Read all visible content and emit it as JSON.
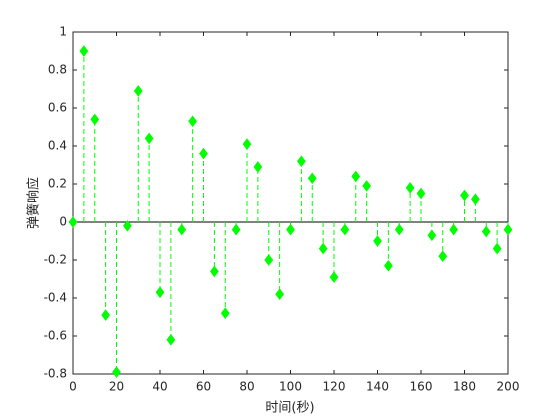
{
  "chart_data": {
    "type": "stem",
    "xlabel": "时间(秒)",
    "ylabel": "弹簧响应",
    "x": [
      0,
      5,
      10,
      15,
      20,
      25,
      30,
      35,
      40,
      45,
      50,
      55,
      60,
      65,
      70,
      75,
      80,
      85,
      90,
      95,
      100,
      105,
      110,
      115,
      120,
      125,
      130,
      135,
      140,
      145,
      150,
      155,
      160,
      165,
      170,
      175,
      180,
      185,
      190,
      195,
      200
    ],
    "values": [
      0,
      0.9,
      0.54,
      -0.49,
      -0.79,
      -0.02,
      0.69,
      0.44,
      -0.37,
      -0.62,
      -0.04,
      0.53,
      0.36,
      -0.26,
      -0.48,
      -0.04,
      0.41,
      0.29,
      -0.2,
      -0.38,
      -0.04,
      0.32,
      0.23,
      -0.14,
      -0.29,
      -0.04,
      0.24,
      0.19,
      -0.1,
      -0.23,
      -0.04,
      0.18,
      0.15,
      -0.07,
      -0.18,
      -0.04,
      0.14,
      0.12,
      -0.05,
      -0.14,
      -0.04
    ],
    "color": "#00ff00",
    "xlim": [
      0,
      200
    ],
    "xticks": [
      0,
      20,
      40,
      60,
      80,
      100,
      120,
      140,
      160,
      180,
      200
    ],
    "ylim": [
      -0.8,
      1
    ],
    "yticks": [
      -0.8,
      -0.6,
      -0.4,
      -0.2,
      0,
      0.2,
      0.4,
      0.6,
      0.8,
      1
    ]
  }
}
